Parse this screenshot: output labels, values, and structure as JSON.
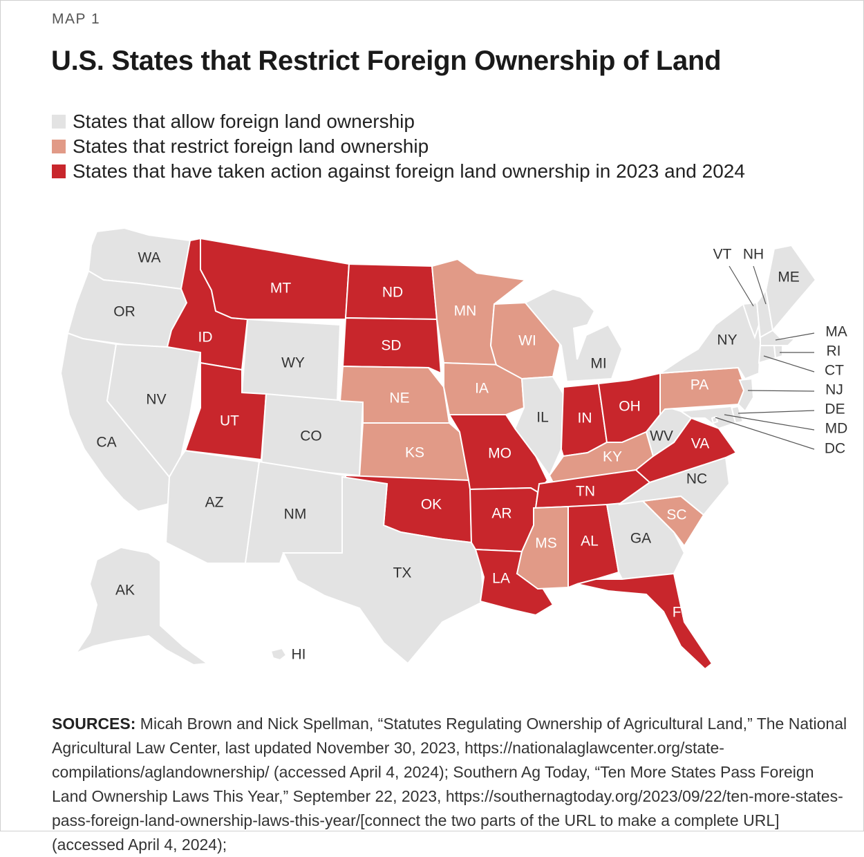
{
  "header": {
    "eyebrow": "MAP 1",
    "title": "U.S. States that Restrict Foreign Ownership of Land"
  },
  "colors": {
    "allow": "#e3e3e3",
    "restrict": "#e19a87",
    "action": "#c8262c"
  },
  "legend": [
    {
      "key": "allow",
      "label": "States that allow foreign land ownership",
      "color": "#e3e3e3"
    },
    {
      "key": "restrict",
      "label": "States that restrict foreign land ownership",
      "color": "#e19a87"
    },
    {
      "key": "action",
      "label": "States that have taken action against foreign land ownership in 2023 and 2024",
      "color": "#c8262c"
    }
  ],
  "states": {
    "WA": {
      "label": "WA",
      "category": "allow"
    },
    "OR": {
      "label": "OR",
      "category": "allow"
    },
    "CA": {
      "label": "CA",
      "category": "allow"
    },
    "NV": {
      "label": "NV",
      "category": "allow"
    },
    "ID": {
      "label": "ID",
      "category": "action"
    },
    "MT": {
      "label": "MT",
      "category": "action"
    },
    "WY": {
      "label": "WY",
      "category": "allow"
    },
    "UT": {
      "label": "UT",
      "category": "action"
    },
    "CO": {
      "label": "CO",
      "category": "allow"
    },
    "AZ": {
      "label": "AZ",
      "category": "allow"
    },
    "NM": {
      "label": "NM",
      "category": "allow"
    },
    "ND": {
      "label": "ND",
      "category": "action"
    },
    "SD": {
      "label": "SD",
      "category": "action"
    },
    "NE": {
      "label": "NE",
      "category": "restrict"
    },
    "KS": {
      "label": "KS",
      "category": "restrict"
    },
    "OK": {
      "label": "OK",
      "category": "action"
    },
    "TX": {
      "label": "TX",
      "category": "allow"
    },
    "MN": {
      "label": "MN",
      "category": "restrict"
    },
    "IA": {
      "label": "IA",
      "category": "restrict"
    },
    "MO": {
      "label": "MO",
      "category": "action"
    },
    "AR": {
      "label": "AR",
      "category": "action"
    },
    "LA": {
      "label": "LA",
      "category": "action"
    },
    "WI": {
      "label": "WI",
      "category": "restrict"
    },
    "IL": {
      "label": "IL",
      "category": "allow"
    },
    "MI": {
      "label": "MI",
      "category": "allow"
    },
    "IN": {
      "label": "IN",
      "category": "action"
    },
    "OH": {
      "label": "OH",
      "category": "action"
    },
    "KY": {
      "label": "KY",
      "category": "restrict"
    },
    "TN": {
      "label": "TN",
      "category": "action"
    },
    "MS": {
      "label": "MS",
      "category": "restrict"
    },
    "AL": {
      "label": "AL",
      "category": "action"
    },
    "GA": {
      "label": "GA",
      "category": "allow"
    },
    "FL": {
      "label": "FL",
      "category": "action"
    },
    "SC": {
      "label": "SC",
      "category": "restrict"
    },
    "NC": {
      "label": "NC",
      "category": "allow"
    },
    "VA": {
      "label": "VA",
      "category": "action"
    },
    "WV": {
      "label": "WV",
      "category": "allow"
    },
    "PA": {
      "label": "PA",
      "category": "restrict"
    },
    "NY": {
      "label": "NY",
      "category": "allow"
    },
    "VT": {
      "label": "VT",
      "category": "allow"
    },
    "NH": {
      "label": "NH",
      "category": "allow"
    },
    "ME": {
      "label": "ME",
      "category": "allow"
    },
    "MA": {
      "label": "MA",
      "category": "allow"
    },
    "RI": {
      "label": "RI",
      "category": "allow"
    },
    "CT": {
      "label": "CT",
      "category": "allow"
    },
    "NJ": {
      "label": "NJ",
      "category": "allow"
    },
    "DE": {
      "label": "DE",
      "category": "allow"
    },
    "MD": {
      "label": "MD",
      "category": "allow"
    },
    "DC": {
      "label": "DC",
      "category": "allow"
    },
    "AK": {
      "label": "AK",
      "category": "allow"
    },
    "HI": {
      "label": "HI",
      "category": "allow"
    }
  },
  "sources": {
    "label": "SOURCES:",
    "text": " Micah Brown and Nick Spellman, “Statutes Regulating Ownership of Agricultural Land,” The National Agricultural Law Center, last updated November 30, 2023, https://nationalaglawcenter.org/state-compilations/aglandownership/ (accessed April 4, 2024); Southern Ag Today, “Ten More States Pass Foreign Land Ownership Laws This Year,” September 22, 2023, https://southernagtoday.org/2023/09/22/ten-more-states-pass-foreign-land-ownership-laws-this-year/[connect the two parts of the URL to make a complete URL] (accessed April 4, 2024);"
  }
}
